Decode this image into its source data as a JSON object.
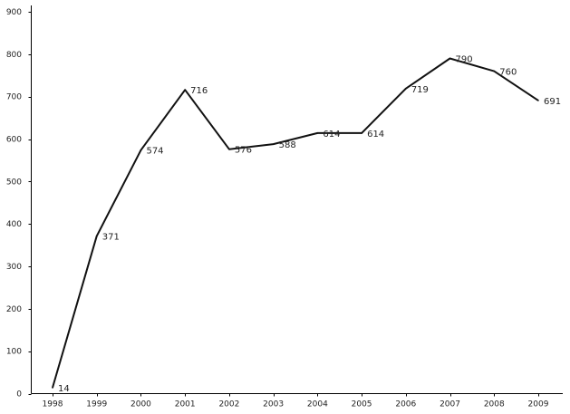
{
  "chart_data": {
    "type": "line",
    "x": [
      "1998",
      "1999",
      "2000",
      "2001",
      "2002",
      "2003",
      "2004",
      "2005",
      "2006",
      "2007",
      "2008",
      "2009"
    ],
    "series": [
      {
        "values": [
          14,
          371,
          574,
          716,
          576,
          588,
          614,
          614,
          719,
          790,
          760,
          691
        ],
        "data_labels": [
          "14",
          "371",
          "574",
          "716",
          "576",
          "588",
          "614",
          "614",
          "719",
          "790",
          "760",
          "691"
        ],
        "color": "#111111"
      }
    ],
    "y_ticks": [
      0,
      100,
      200,
      300,
      400,
      500,
      600,
      700,
      800,
      900
    ],
    "y_tick_labels": [
      "0",
      "100",
      "200",
      "300",
      "400",
      "500",
      "600",
      "700",
      "800",
      "900"
    ],
    "ylim": [
      0,
      900
    ],
    "grid": false,
    "legend": "none"
  }
}
